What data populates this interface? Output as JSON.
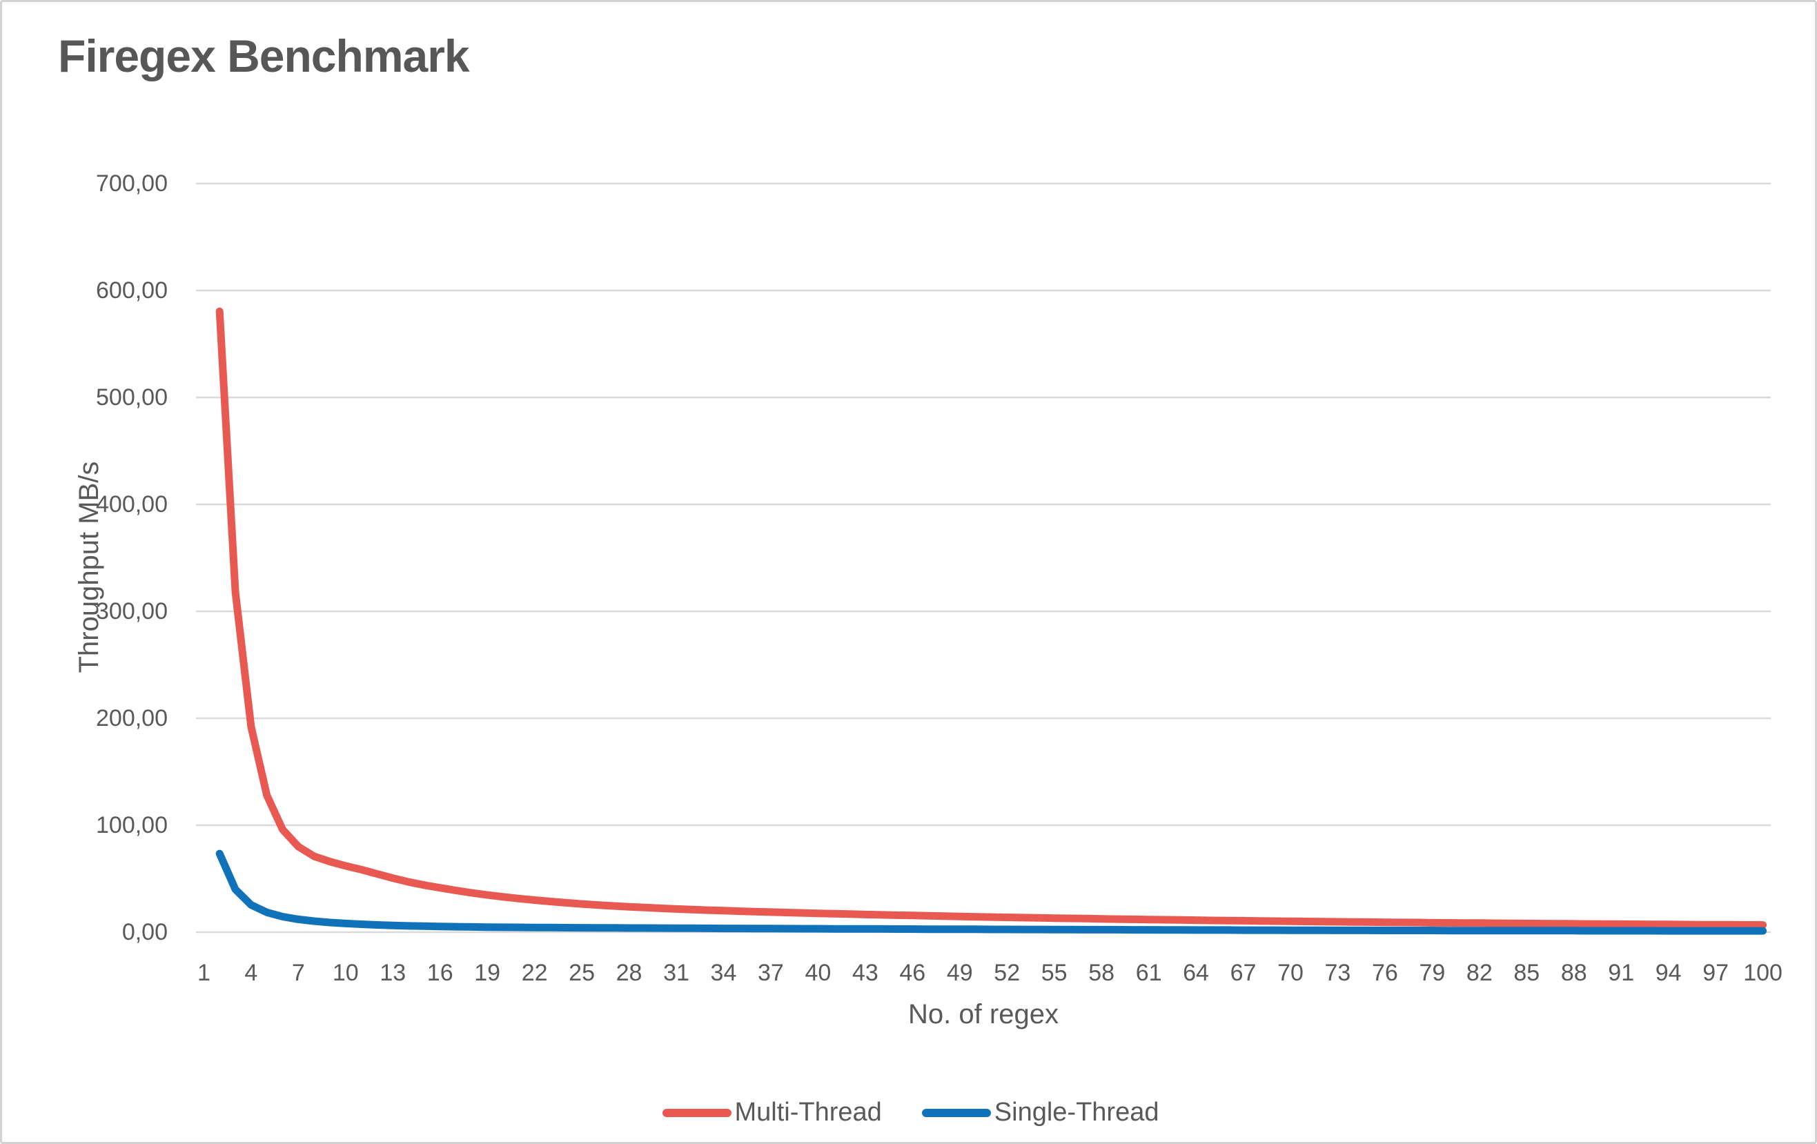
{
  "title": "Firegex Benchmark",
  "colors": {
    "title_text": "#575757",
    "axis_text": "#595959",
    "gridline": "#d9d9d9",
    "multi_thread": "#e85952",
    "single_thread": "#1072b9",
    "frame_border": "#d2d2d2",
    "background": "#ffffff"
  },
  "chart_data": {
    "type": "line",
    "title": "Firegex Benchmark",
    "xlabel": "No. of regex",
    "ylabel": "Throughput MB/s",
    "ylim": [
      0,
      700
    ],
    "y_tick_step": 100,
    "y_tick_labels": [
      "0,00",
      "100,00",
      "200,00",
      "300,00",
      "400,00",
      "500,00",
      "600,00",
      "700,00"
    ],
    "x_tick_labels": [
      "1",
      "4",
      "7",
      "10",
      "13",
      "16",
      "19",
      "22",
      "25",
      "28",
      "31",
      "34",
      "37",
      "40",
      "43",
      "46",
      "49",
      "52",
      "55",
      "58",
      "61",
      "64",
      "67",
      "70",
      "73",
      "76",
      "79",
      "82",
      "85",
      "88",
      "91",
      "94",
      "97",
      "100"
    ],
    "x_categories_range": [
      1,
      100
    ],
    "grid": "horizontal",
    "legend_position": "bottom-center",
    "x": [
      2,
      3,
      4,
      5,
      6,
      7,
      8,
      9,
      10,
      11,
      12,
      13,
      14,
      15,
      16,
      17,
      18,
      19,
      20,
      21,
      22,
      23,
      24,
      25,
      26,
      27,
      28,
      29,
      30,
      31,
      32,
      33,
      34,
      35,
      36,
      37,
      38,
      39,
      40,
      41,
      42,
      43,
      44,
      45,
      46,
      47,
      48,
      49,
      50,
      51,
      52,
      53,
      54,
      55,
      56,
      57,
      58,
      59,
      60,
      61,
      62,
      63,
      64,
      65,
      66,
      67,
      68,
      69,
      70,
      71,
      72,
      73,
      74,
      75,
      76,
      77,
      78,
      79,
      80,
      81,
      82,
      83,
      84,
      85,
      86,
      87,
      88,
      89,
      90,
      91,
      92,
      93,
      94,
      95,
      96,
      97,
      98,
      99,
      100
    ],
    "series": [
      {
        "name": "Multi-Thread",
        "color": "#e85952",
        "values": [
          580.5,
          318,
          192,
          128,
          96,
          80,
          71,
          66,
          62,
          58.5,
          54.5,
          50.5,
          47,
          44,
          41.5,
          39,
          36.8,
          34.8,
          33,
          31.4,
          30,
          28.7,
          27.5,
          26.4,
          25.4,
          24.5,
          23.7,
          23,
          22.3,
          21.7,
          21.1,
          20.6,
          20.1,
          19.6,
          19.2,
          18.8,
          18.4,
          18,
          17.6,
          17.2,
          16.9,
          16.5,
          16.2,
          15.9,
          15.6,
          15.3,
          15,
          14.7,
          14.4,
          14.1,
          13.9,
          13.6,
          13.4,
          13.1,
          12.9,
          12.7,
          12.4,
          12.2,
          12,
          11.8,
          11.6,
          11.4,
          11.2,
          11,
          10.8,
          10.7,
          10.5,
          10.3,
          10.1,
          10,
          9.8,
          9.7,
          9.5,
          9.4,
          9.2,
          9.1,
          9,
          8.8,
          8.7,
          8.6,
          8.5,
          8.3,
          8.2,
          8.1,
          8,
          7.9,
          7.8,
          7.7,
          7.6,
          7.5,
          7.4,
          7.3,
          7.2,
          7.1,
          7,
          7,
          6.9,
          6.8,
          6.7
        ]
      },
      {
        "name": "Single-Thread",
        "color": "#1072b9",
        "values": [
          73.5,
          40,
          25.5,
          18.5,
          14.5,
          12,
          10.3,
          9,
          8.1,
          7.4,
          6.8,
          6.3,
          5.9,
          5.6,
          5.3,
          5.1,
          4.9,
          4.7,
          4.6,
          4.5,
          4.4,
          4.3,
          4.2,
          4.1,
          4.0,
          4.0,
          3.9,
          3.9,
          3.8,
          3.7,
          3.7,
          3.6,
          3.5,
          3.5,
          3.4,
          3.4,
          3.3,
          3.2,
          3.2,
          3.1,
          3.1,
          3.0,
          3.0,
          2.9,
          2.9,
          2.8,
          2.8,
          2.7,
          2.7,
          2.6,
          2.6,
          2.5,
          2.5,
          2.4,
          2.4,
          2.3,
          2.3,
          2.3,
          2.2,
          2.2,
          2.1,
          2.1,
          2.0,
          2.0,
          2.0,
          1.9,
          1.9,
          1.9,
          1.8,
          1.8,
          1.8,
          1.7,
          1.7,
          1.7,
          1.6,
          1.6,
          1.6,
          1.6,
          1.5,
          1.5,
          1.5,
          1.5,
          1.4,
          1.4,
          1.4,
          1.4,
          1.4,
          1.3,
          1.3,
          1.3,
          1.3,
          1.3,
          1.2,
          1.2,
          1.2,
          1.2,
          1.2,
          1.2,
          1.2
        ]
      }
    ]
  }
}
